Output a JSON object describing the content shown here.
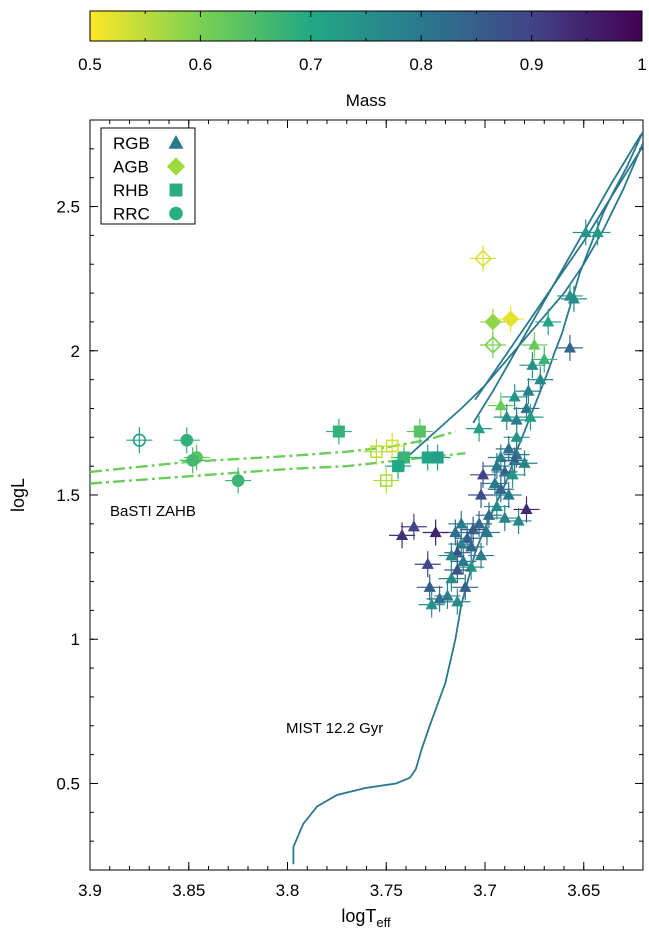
{
  "colorbar": {
    "label": "Mass",
    "range": [
      0.5,
      1.0
    ],
    "ticks": [
      "0.5",
      "0.6",
      "0.7",
      "0.8",
      "0.9",
      "1"
    ],
    "stops": [
      "#fde725",
      "#7ad151",
      "#22a884",
      "#2a788e",
      "#414487",
      "#440154"
    ]
  },
  "chart_data": {
    "type": "scatter",
    "xlabel": "logT",
    "xlabel_sub": "eff",
    "ylabel": "logL",
    "xlim": [
      3.9,
      3.62
    ],
    "ylim": [
      0.2,
      2.8
    ],
    "xticks": [
      "3.9",
      "3.85",
      "3.8",
      "3.75",
      "3.7",
      "3.65"
    ],
    "yticks": [
      "0.5",
      "1",
      "1.5",
      "2",
      "2.5"
    ],
    "legend_position": "top-left",
    "legend": [
      {
        "name": "RGB",
        "marker": "triangle",
        "color": "#2a788e"
      },
      {
        "name": "AGB",
        "marker": "diamond",
        "color": "#a0da39"
      },
      {
        "name": "RHB",
        "marker": "square",
        "color": "#29af7f"
      },
      {
        "name": "RRC",
        "marker": "circle",
        "color": "#29af7f"
      }
    ],
    "annotations": [
      {
        "text": "BaSTI ZAHB",
        "x": 3.87,
        "y": 1.45
      },
      {
        "text": "MIST 12.2 Gyr",
        "x": 3.77,
        "y": 0.72
      }
    ],
    "zahb_tracks": [
      {
        "x": [
          3.9,
          3.85,
          3.8,
          3.77,
          3.75,
          3.73,
          3.715
        ],
        "y": [
          1.58,
          1.615,
          1.635,
          1.65,
          1.665,
          1.69,
          1.72
        ]
      },
      {
        "x": [
          3.9,
          3.85,
          3.8,
          3.77,
          3.75,
          3.73,
          3.71
        ],
        "y": [
          1.54,
          1.565,
          1.59,
          1.6,
          1.615,
          1.63,
          1.645
        ]
      }
    ],
    "isochrone": {
      "x": [
        3.797,
        3.797,
        3.792,
        3.785,
        3.775,
        3.76,
        3.745,
        3.738,
        3.735,
        3.732,
        3.728,
        3.72,
        3.715,
        3.712,
        3.708,
        3.705,
        3.701,
        3.697,
        3.693,
        3.689,
        3.686,
        3.683,
        3.68,
        3.676,
        3.672,
        3.668,
        3.665,
        3.661,
        3.658,
        3.655,
        3.652,
        3.648,
        3.644,
        3.64,
        3.635,
        3.628,
        3.62
      ],
      "y": [
        0.22,
        0.28,
        0.36,
        0.42,
        0.46,
        0.485,
        0.5,
        0.52,
        0.55,
        0.62,
        0.7,
        0.85,
        1.0,
        1.12,
        1.22,
        1.3,
        1.37,
        1.43,
        1.49,
        1.55,
        1.61,
        1.67,
        1.72,
        1.79,
        1.86,
        1.93,
        1.99,
        2.06,
        2.13,
        2.2,
        2.27,
        2.34,
        2.41,
        2.48,
        2.55,
        2.64,
        2.76
      ],
      "agb": {
        "x": [
          3.738,
          3.725,
          3.712,
          3.7,
          3.69,
          3.68,
          3.67,
          3.66,
          3.65,
          3.64,
          3.63,
          3.62
        ],
        "y": [
          1.64,
          1.72,
          1.8,
          1.88,
          1.96,
          2.04,
          2.12,
          2.2,
          2.3,
          2.42,
          2.56,
          2.72
        ]
      },
      "branch2": {
        "x": [
          3.705,
          3.7,
          3.69,
          3.68,
          3.67,
          3.66,
          3.65,
          3.64,
          3.63,
          3.62
        ],
        "y": [
          1.83,
          1.88,
          1.98,
          2.08,
          2.18,
          2.28,
          2.38,
          2.49,
          2.6,
          2.71
        ]
      },
      "branch3": {
        "x": [
          3.706,
          3.696,
          3.686,
          3.676,
          3.666,
          3.656,
          3.646,
          3.636,
          3.628,
          3.621
        ],
        "y": [
          1.75,
          1.86,
          1.98,
          2.1,
          2.22,
          2.34,
          2.46,
          2.58,
          2.67,
          2.75
        ]
      }
    },
    "series": [
      {
        "name": "RGB",
        "marker": "triangle",
        "points": [
          {
            "x": 3.643,
            "y": 2.41,
            "m": 0.73
          },
          {
            "x": 3.649,
            "y": 2.41,
            "m": 0.74
          },
          {
            "x": 3.657,
            "y": 2.19,
            "m": 0.74
          },
          {
            "x": 3.655,
            "y": 2.18,
            "m": 0.76
          },
          {
            "x": 3.668,
            "y": 2.1,
            "m": 0.71
          },
          {
            "x": 3.675,
            "y": 2.02,
            "m": 0.62
          },
          {
            "x": 3.657,
            "y": 2.01,
            "m": 0.83
          },
          {
            "x": 3.67,
            "y": 1.97,
            "m": 0.67
          },
          {
            "x": 3.676,
            "y": 1.95,
            "m": 0.75
          },
          {
            "x": 3.672,
            "y": 1.9,
            "m": 0.76
          },
          {
            "x": 3.678,
            "y": 1.86,
            "m": 0.78
          },
          {
            "x": 3.685,
            "y": 1.84,
            "m": 0.74
          },
          {
            "x": 3.692,
            "y": 1.81,
            "m": 0.62
          },
          {
            "x": 3.679,
            "y": 1.8,
            "m": 0.8
          },
          {
            "x": 3.684,
            "y": 1.76,
            "m": 0.79
          },
          {
            "x": 3.689,
            "y": 1.77,
            "m": 0.76
          },
          {
            "x": 3.677,
            "y": 1.77,
            "m": 0.72
          },
          {
            "x": 3.703,
            "y": 1.73,
            "m": 0.72
          },
          {
            "x": 3.684,
            "y": 1.7,
            "m": 0.74
          },
          {
            "x": 3.688,
            "y": 1.66,
            "m": 0.82
          },
          {
            "x": 3.684,
            "y": 1.64,
            "m": 0.8
          },
          {
            "x": 3.692,
            "y": 1.63,
            "m": 0.78
          },
          {
            "x": 3.685,
            "y": 1.62,
            "m": 0.85
          },
          {
            "x": 3.68,
            "y": 1.61,
            "m": 0.77
          },
          {
            "x": 3.694,
            "y": 1.6,
            "m": 0.8
          },
          {
            "x": 3.69,
            "y": 1.58,
            "m": 0.84
          },
          {
            "x": 3.701,
            "y": 1.57,
            "m": 0.9
          },
          {
            "x": 3.686,
            "y": 1.57,
            "m": 0.74
          },
          {
            "x": 3.695,
            "y": 1.54,
            "m": 0.79
          },
          {
            "x": 3.692,
            "y": 1.52,
            "m": 0.83
          },
          {
            "x": 3.702,
            "y": 1.5,
            "m": 0.88
          },
          {
            "x": 3.688,
            "y": 1.5,
            "m": 0.8
          },
          {
            "x": 3.679,
            "y": 1.45,
            "m": 0.94
          },
          {
            "x": 3.694,
            "y": 1.46,
            "m": 0.76
          },
          {
            "x": 3.698,
            "y": 1.43,
            "m": 0.82
          },
          {
            "x": 3.69,
            "y": 1.42,
            "m": 0.78
          },
          {
            "x": 3.683,
            "y": 1.41,
            "m": 0.77
          },
          {
            "x": 3.703,
            "y": 1.4,
            "m": 0.83
          },
          {
            "x": 3.712,
            "y": 1.4,
            "m": 0.79
          },
          {
            "x": 3.706,
            "y": 1.38,
            "m": 0.86
          },
          {
            "x": 3.699,
            "y": 1.37,
            "m": 0.8
          },
          {
            "x": 3.715,
            "y": 1.37,
            "m": 0.82
          },
          {
            "x": 3.736,
            "y": 1.39,
            "m": 0.9
          },
          {
            "x": 3.725,
            "y": 1.37,
            "m": 0.95
          },
          {
            "x": 3.742,
            "y": 1.36,
            "m": 0.93
          },
          {
            "x": 3.709,
            "y": 1.35,
            "m": 0.84
          },
          {
            "x": 3.712,
            "y": 1.33,
            "m": 0.77
          },
          {
            "x": 3.707,
            "y": 1.32,
            "m": 0.83
          },
          {
            "x": 3.714,
            "y": 1.3,
            "m": 0.88
          },
          {
            "x": 3.717,
            "y": 1.29,
            "m": 0.76
          },
          {
            "x": 3.702,
            "y": 1.29,
            "m": 0.79
          },
          {
            "x": 3.711,
            "y": 1.27,
            "m": 0.8
          },
          {
            "x": 3.707,
            "y": 1.25,
            "m": 0.74
          },
          {
            "x": 3.729,
            "y": 1.26,
            "m": 0.9
          },
          {
            "x": 3.714,
            "y": 1.24,
            "m": 0.87
          },
          {
            "x": 3.717,
            "y": 1.21,
            "m": 0.76
          },
          {
            "x": 3.728,
            "y": 1.18,
            "m": 0.85
          },
          {
            "x": 3.71,
            "y": 1.18,
            "m": 0.84
          },
          {
            "x": 3.719,
            "y": 1.15,
            "m": 0.78
          },
          {
            "x": 3.723,
            "y": 1.14,
            "m": 0.82
          },
          {
            "x": 3.714,
            "y": 1.13,
            "m": 0.76
          },
          {
            "x": 3.727,
            "y": 1.12,
            "m": 0.74
          }
        ]
      },
      {
        "name": "AGB",
        "marker": "diamond",
        "points": [
          {
            "x": 3.696,
            "y": 2.1,
            "m": 0.58,
            "filled": true
          },
          {
            "x": 3.687,
            "y": 2.11,
            "m": 0.52,
            "filled": true
          },
          {
            "x": 3.696,
            "y": 2.02,
            "m": 0.6,
            "filled": false
          },
          {
            "x": 3.701,
            "y": 2.32,
            "m": 0.53,
            "filled": false
          }
        ]
      },
      {
        "name": "RHB",
        "marker": "square",
        "points": [
          {
            "x": 3.774,
            "y": 1.72,
            "m": 0.68,
            "filled": true
          },
          {
            "x": 3.733,
            "y": 1.72,
            "m": 0.64,
            "filled": true
          },
          {
            "x": 3.741,
            "y": 1.63,
            "m": 0.67,
            "filled": true
          },
          {
            "x": 3.744,
            "y": 1.6,
            "m": 0.7,
            "filled": true
          },
          {
            "x": 3.729,
            "y": 1.63,
            "m": 0.7,
            "filled": true
          },
          {
            "x": 3.724,
            "y": 1.63,
            "m": 0.72,
            "filled": true
          },
          {
            "x": 3.747,
            "y": 1.67,
            "m": 0.53,
            "filled": false
          },
          {
            "x": 3.755,
            "y": 1.65,
            "m": 0.55,
            "filled": false
          },
          {
            "x": 3.75,
            "y": 1.55,
            "m": 0.56,
            "filled": false
          }
        ]
      },
      {
        "name": "RRC",
        "marker": "circle",
        "points": [
          {
            "x": 3.851,
            "y": 1.69,
            "m": 0.68,
            "filled": true
          },
          {
            "x": 3.846,
            "y": 1.63,
            "m": 0.63,
            "filled": true
          },
          {
            "x": 3.848,
            "y": 1.62,
            "m": 0.66,
            "filled": true
          },
          {
            "x": 3.825,
            "y": 1.55,
            "m": 0.67,
            "filled": true
          },
          {
            "x": 3.875,
            "y": 1.69,
            "m": 0.72,
            "filled": false
          }
        ]
      }
    ]
  }
}
